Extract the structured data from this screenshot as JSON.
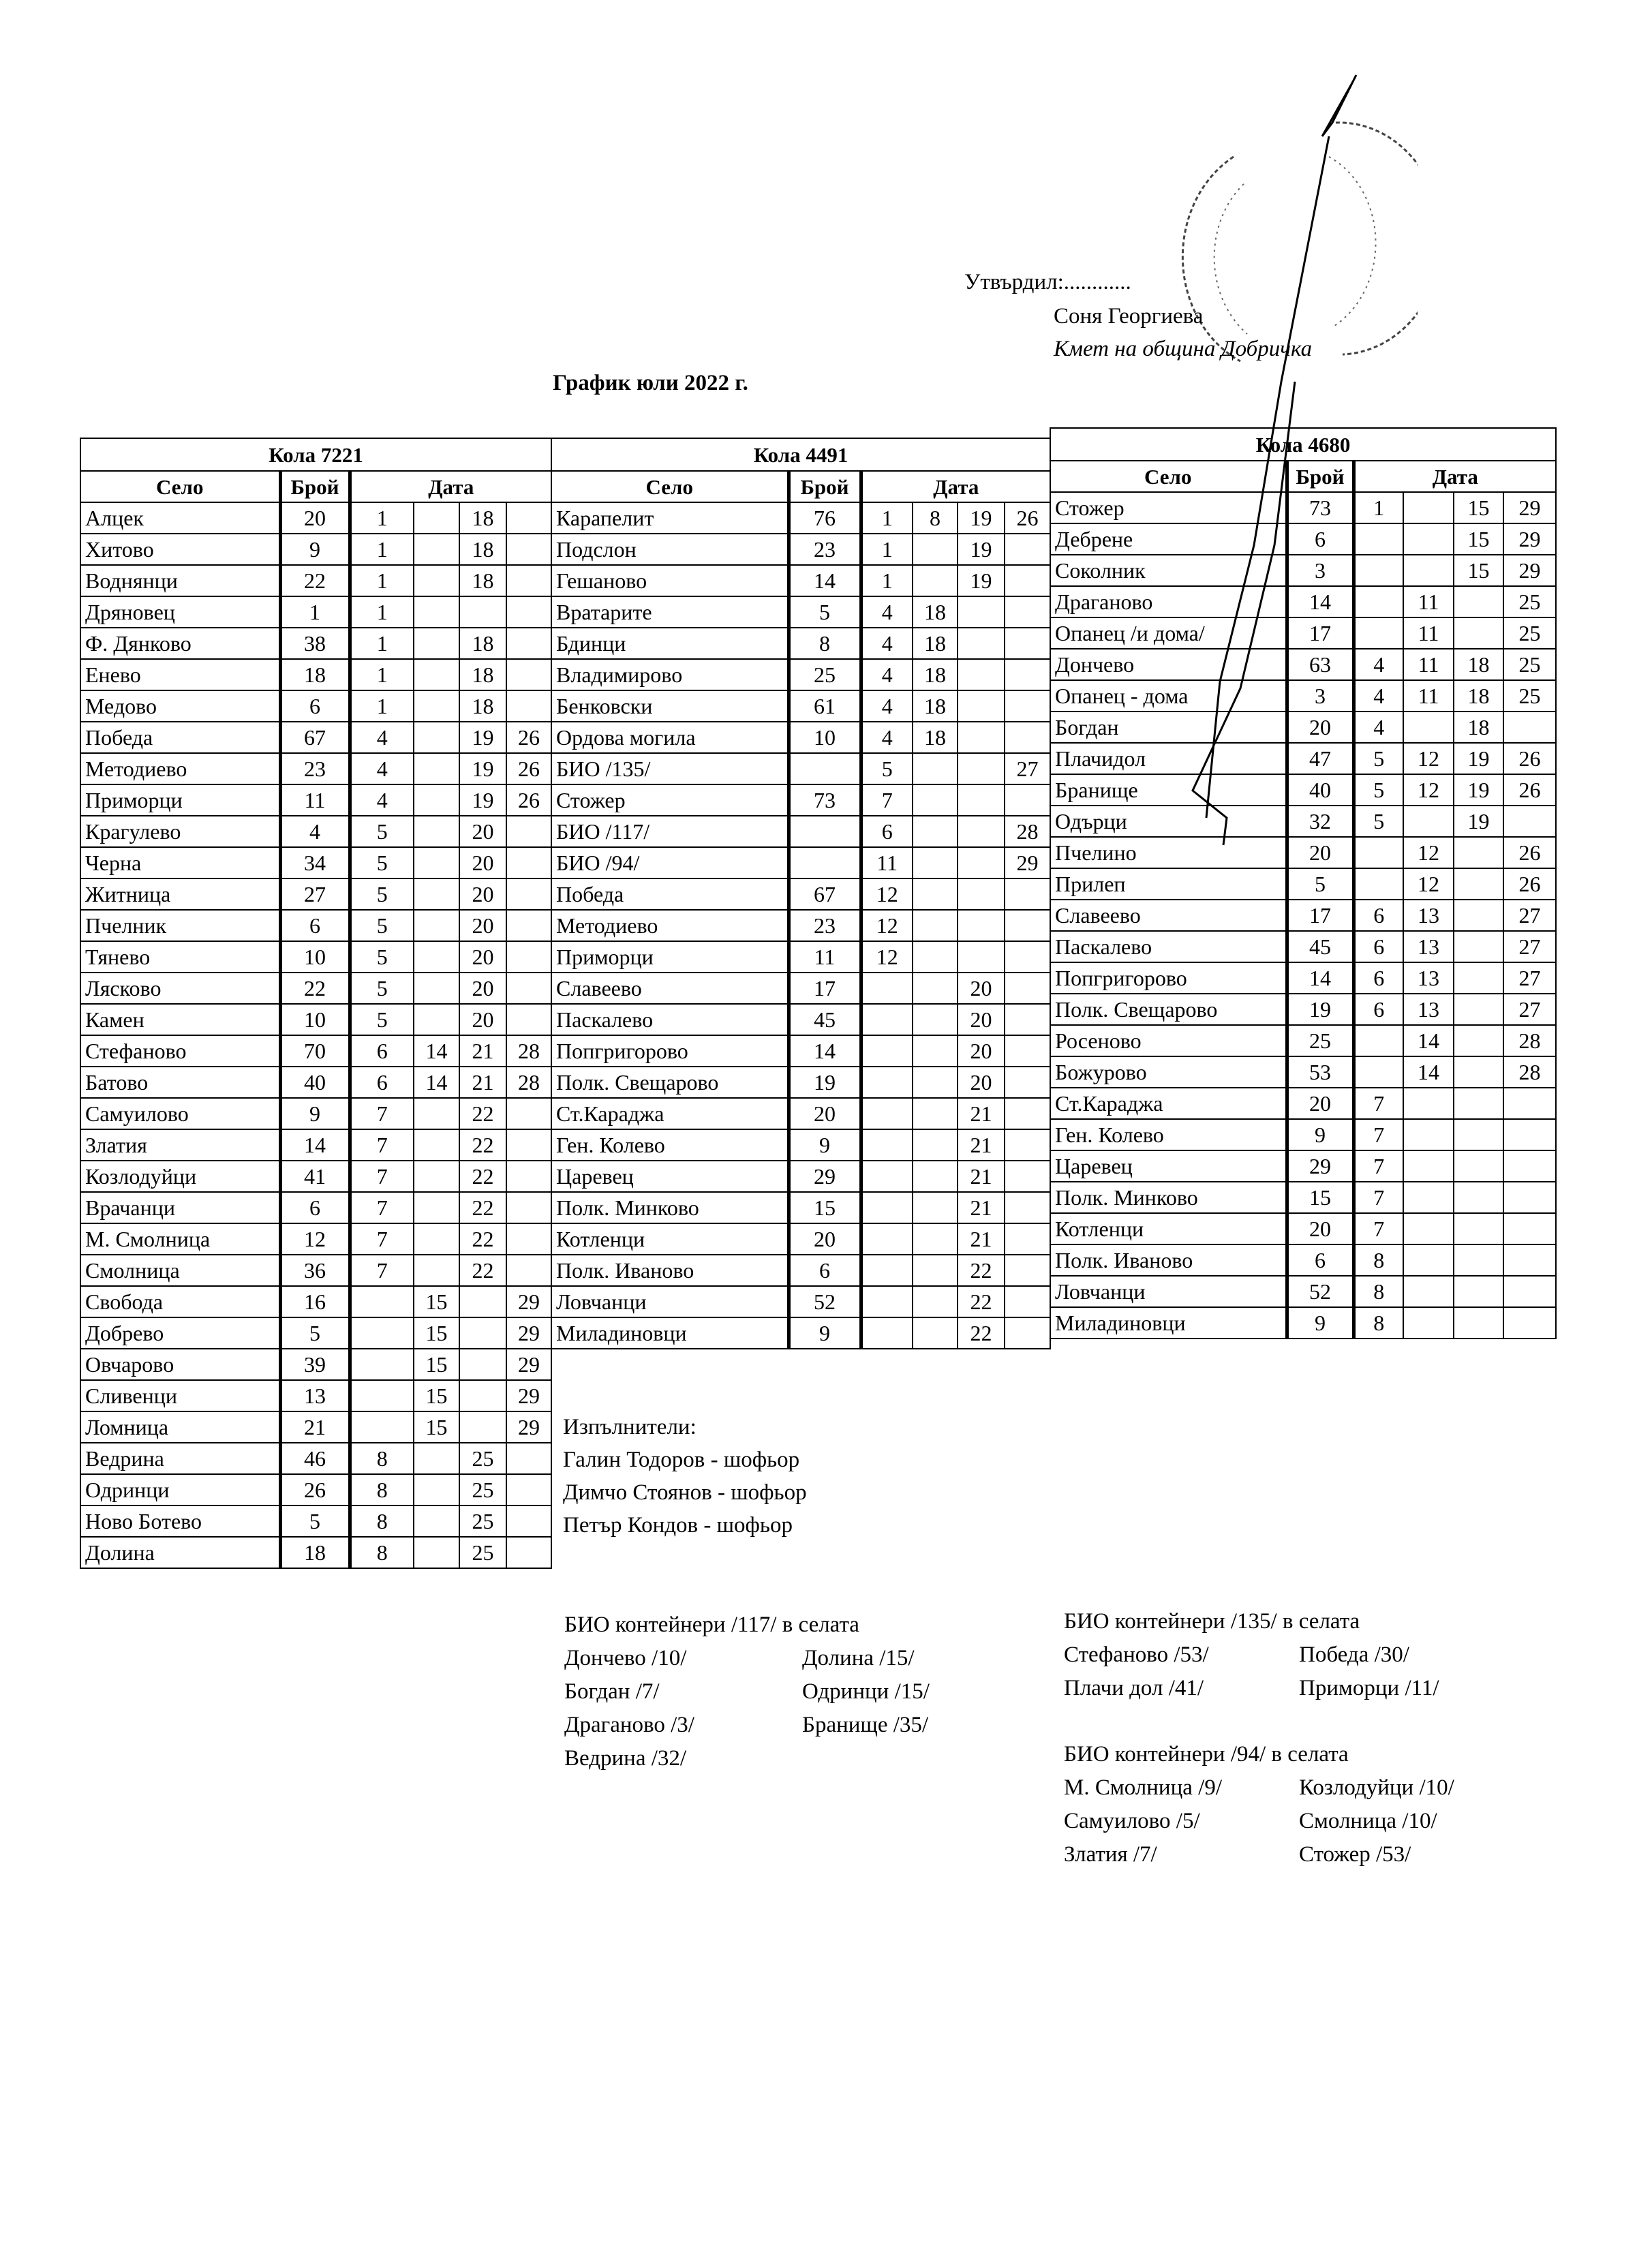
{
  "header": {
    "approved": "Утвърдил:............",
    "name": "Соня Георгиева",
    "position": "Кмет  на община Добричка",
    "title": "График юли 2022 г."
  },
  "column_headers": {
    "village": "Село",
    "count": "Брой",
    "date": "Дата"
  },
  "tables": [
    {
      "vehicle": "Кола 7221",
      "rows": [
        [
          "Алцек",
          "20",
          "1",
          "",
          "18",
          ""
        ],
        [
          "Хитово",
          "9",
          "1",
          "",
          "18",
          ""
        ],
        [
          "Воднянци",
          "22",
          "1",
          "",
          "18",
          ""
        ],
        [
          "Дряновец",
          "1",
          "1",
          "",
          "",
          ""
        ],
        [
          "Ф. Дянково",
          "38",
          "1",
          "",
          "18",
          ""
        ],
        [
          "Енево",
          "18",
          "1",
          "",
          "18",
          ""
        ],
        [
          "Медово",
          "6",
          "1",
          "",
          "18",
          ""
        ],
        [
          "Победа",
          "67",
          "4",
          "",
          "19",
          "26"
        ],
        [
          "Методиево",
          "23",
          "4",
          "",
          "19",
          "26"
        ],
        [
          "Приморци",
          "11",
          "4",
          "",
          "19",
          "26"
        ],
        [
          "Крагулево",
          "4",
          "5",
          "",
          "20",
          ""
        ],
        [
          "Черна",
          "34",
          "5",
          "",
          "20",
          ""
        ],
        [
          "Житница",
          "27",
          "5",
          "",
          "20",
          ""
        ],
        [
          "Пчелник",
          "6",
          "5",
          "",
          "20",
          ""
        ],
        [
          "Тянево",
          "10",
          "5",
          "",
          "20",
          ""
        ],
        [
          "Лясково",
          "22",
          "5",
          "",
          "20",
          ""
        ],
        [
          "Камен",
          "10",
          "5",
          "",
          "20",
          ""
        ],
        [
          "Стефаново",
          "70",
          "6",
          "14",
          "21",
          "28"
        ],
        [
          "Батово",
          "40",
          "6",
          "14",
          "21",
          "28"
        ],
        [
          "Самуилово",
          "9",
          "7",
          "",
          "22",
          ""
        ],
        [
          "Златия",
          "14",
          "7",
          "",
          "22",
          ""
        ],
        [
          "Козлодуйци",
          "41",
          "7",
          "",
          "22",
          ""
        ],
        [
          "Врачанци",
          "6",
          "7",
          "",
          "22",
          ""
        ],
        [
          "М. Смолница",
          "12",
          "7",
          "",
          "22",
          ""
        ],
        [
          "Смолница",
          "36",
          "7",
          "",
          "22",
          ""
        ],
        [
          "Свобода",
          "16",
          "",
          "15",
          "",
          "29"
        ],
        [
          "Добрево",
          "5",
          "",
          "15",
          "",
          "29"
        ],
        [
          "Овчарово",
          "39",
          "",
          "15",
          "",
          "29"
        ],
        [
          "Сливенци",
          "13",
          "",
          "15",
          "",
          "29"
        ],
        [
          "Ломница",
          "21",
          "",
          "15",
          "",
          "29"
        ],
        [
          "Ведрина",
          "46",
          "8",
          "",
          "25",
          ""
        ],
        [
          "Одринци",
          "26",
          "8",
          "",
          "25",
          ""
        ],
        [
          "Ново Ботево",
          "5",
          "8",
          "",
          "25",
          ""
        ],
        [
          "Долина",
          "18",
          "8",
          "",
          "25",
          ""
        ]
      ]
    },
    {
      "vehicle": "Кола 4491",
      "rows": [
        [
          "Карапелит",
          "76",
          "1",
          "8",
          "19",
          "26"
        ],
        [
          "Подслон",
          "23",
          "1",
          "",
          "19",
          ""
        ],
        [
          "Гешаново",
          "14",
          "1",
          "",
          "19",
          ""
        ],
        [
          "Вратарите",
          "5",
          "4",
          "18",
          "",
          ""
        ],
        [
          "Бдинци",
          "8",
          "4",
          "18",
          "",
          ""
        ],
        [
          "Владимирово",
          "25",
          "4",
          "18",
          "",
          ""
        ],
        [
          "Бенковски",
          "61",
          "4",
          "18",
          "",
          ""
        ],
        [
          "Ордова могила",
          "10",
          "4",
          "18",
          "",
          ""
        ],
        [
          "БИО /135/",
          "",
          "5",
          "",
          "",
          "27"
        ],
        [
          "Стожер",
          "73",
          "7",
          "",
          "",
          ""
        ],
        [
          "БИО /117/",
          "",
          "6",
          "",
          "",
          "28"
        ],
        [
          "БИО /94/",
          "",
          "11",
          "",
          "",
          "29"
        ],
        [
          "Победа",
          "67",
          "12",
          "",
          "",
          ""
        ],
        [
          "Методиево",
          "23",
          "12",
          "",
          "",
          ""
        ],
        [
          "Приморци",
          "11",
          "12",
          "",
          "",
          ""
        ],
        [
          "Славеево",
          "17",
          "",
          "",
          "20",
          ""
        ],
        [
          "Паскалево",
          "45",
          "",
          "",
          "20",
          ""
        ],
        [
          "Попгригорово",
          "14",
          "",
          "",
          "20",
          ""
        ],
        [
          "Полк. Свещарово",
          "19",
          "",
          "",
          "20",
          ""
        ],
        [
          "Ст.Караджа",
          "20",
          "",
          "",
          "21",
          ""
        ],
        [
          "Ген. Колево",
          "9",
          "",
          "",
          "21",
          ""
        ],
        [
          "Царевец",
          "29",
          "",
          "",
          "21",
          ""
        ],
        [
          "Полк. Минково",
          "15",
          "",
          "",
          "21",
          ""
        ],
        [
          "Котленци",
          "20",
          "",
          "",
          "21",
          ""
        ],
        [
          "Полк. Иваново",
          "6",
          "",
          "",
          "22",
          ""
        ],
        [
          "Ловчанци",
          "52",
          "",
          "",
          "22",
          ""
        ],
        [
          "Миладиновци",
          "9",
          "",
          "",
          "22",
          ""
        ]
      ]
    },
    {
      "vehicle": "Кола 4680",
      "rows": [
        [
          "Стожер",
          "73",
          "1",
          "",
          "15",
          "29"
        ],
        [
          "Дебрене",
          "6",
          "",
          "",
          "15",
          "29"
        ],
        [
          "Соколник",
          "3",
          "",
          "",
          "15",
          "29"
        ],
        [
          "Драганово",
          "14",
          "",
          "11",
          "",
          "25"
        ],
        [
          "Опанец /и дома/",
          "17",
          "",
          "11",
          "",
          "25"
        ],
        [
          "Дончево",
          "63",
          "4",
          "11",
          "18",
          "25"
        ],
        [
          "Опанец - дома",
          "3",
          "4",
          "11",
          "18",
          "25"
        ],
        [
          "Богдан",
          "20",
          "4",
          "",
          "18",
          ""
        ],
        [
          "Плачидол",
          "47",
          "5",
          "12",
          "19",
          "26"
        ],
        [
          "Бранище",
          "40",
          "5",
          "12",
          "19",
          "26"
        ],
        [
          "Одърци",
          "32",
          "5",
          "",
          "19",
          ""
        ],
        [
          "Пчелино",
          "20",
          "",
          "12",
          "",
          "26"
        ],
        [
          "Прилеп",
          "5",
          "",
          "12",
          "",
          "26"
        ],
        [
          "Славеево",
          "17",
          "6",
          "13",
          "",
          "27"
        ],
        [
          "Паскалево",
          "45",
          "6",
          "13",
          "",
          "27"
        ],
        [
          "Попгригорово",
          "14",
          "6",
          "13",
          "",
          "27"
        ],
        [
          "Полк. Свещарово",
          "19",
          "6",
          "13",
          "",
          "27"
        ],
        [
          "Росеново",
          "25",
          "",
          "14",
          "",
          "28"
        ],
        [
          "Божурово",
          "53",
          "",
          "14",
          "",
          "28"
        ],
        [
          "Ст.Караджа",
          "20",
          "7",
          "",
          "",
          ""
        ],
        [
          "Ген. Колево",
          "9",
          "7",
          "",
          "",
          ""
        ],
        [
          "Царевец",
          "29",
          "7",
          "",
          "",
          ""
        ],
        [
          "Полк. Минково",
          "15",
          "7",
          "",
          "",
          ""
        ],
        [
          "Котленци",
          "20",
          "7",
          "",
          "",
          ""
        ],
        [
          "Полк. Иваново",
          "6",
          "8",
          "",
          "",
          ""
        ],
        [
          "Ловчанци",
          "52",
          "8",
          "",
          "",
          ""
        ],
        [
          "Миладиновци",
          "9",
          "8",
          "",
          "",
          ""
        ]
      ]
    }
  ],
  "executors": {
    "label": "Изпълнители:",
    "names": [
      "Галин Тодоров - шофьор",
      "Димчо Стоянов - шофьор",
      "Петър Кондов - шофьор"
    ]
  },
  "bio": [
    {
      "title": "БИО контейнери /117/ в селата",
      "col1": [
        "Дончево /10/",
        "Богдан /7/",
        "Драганово /3/",
        "Ведрина /32/"
      ],
      "col2": [
        "Долина /15/",
        "Одринци /15/",
        "Бранище /35/"
      ]
    },
    {
      "title": "БИО контейнери /135/ в селата",
      "col1": [
        "Стефаново /53/",
        "Плачи дол /41/"
      ],
      "col2": [
        "Победа /30/",
        "Приморци /11/"
      ]
    },
    {
      "title": "БИО контейнери /94/ в селата",
      "col1": [
        "М. Смолница /9/",
        "Самуилово /5/",
        "Златия /7/"
      ],
      "col2": [
        "Козлодуйци /10/",
        "Смолница /10/",
        "Стожер /53/"
      ]
    }
  ]
}
